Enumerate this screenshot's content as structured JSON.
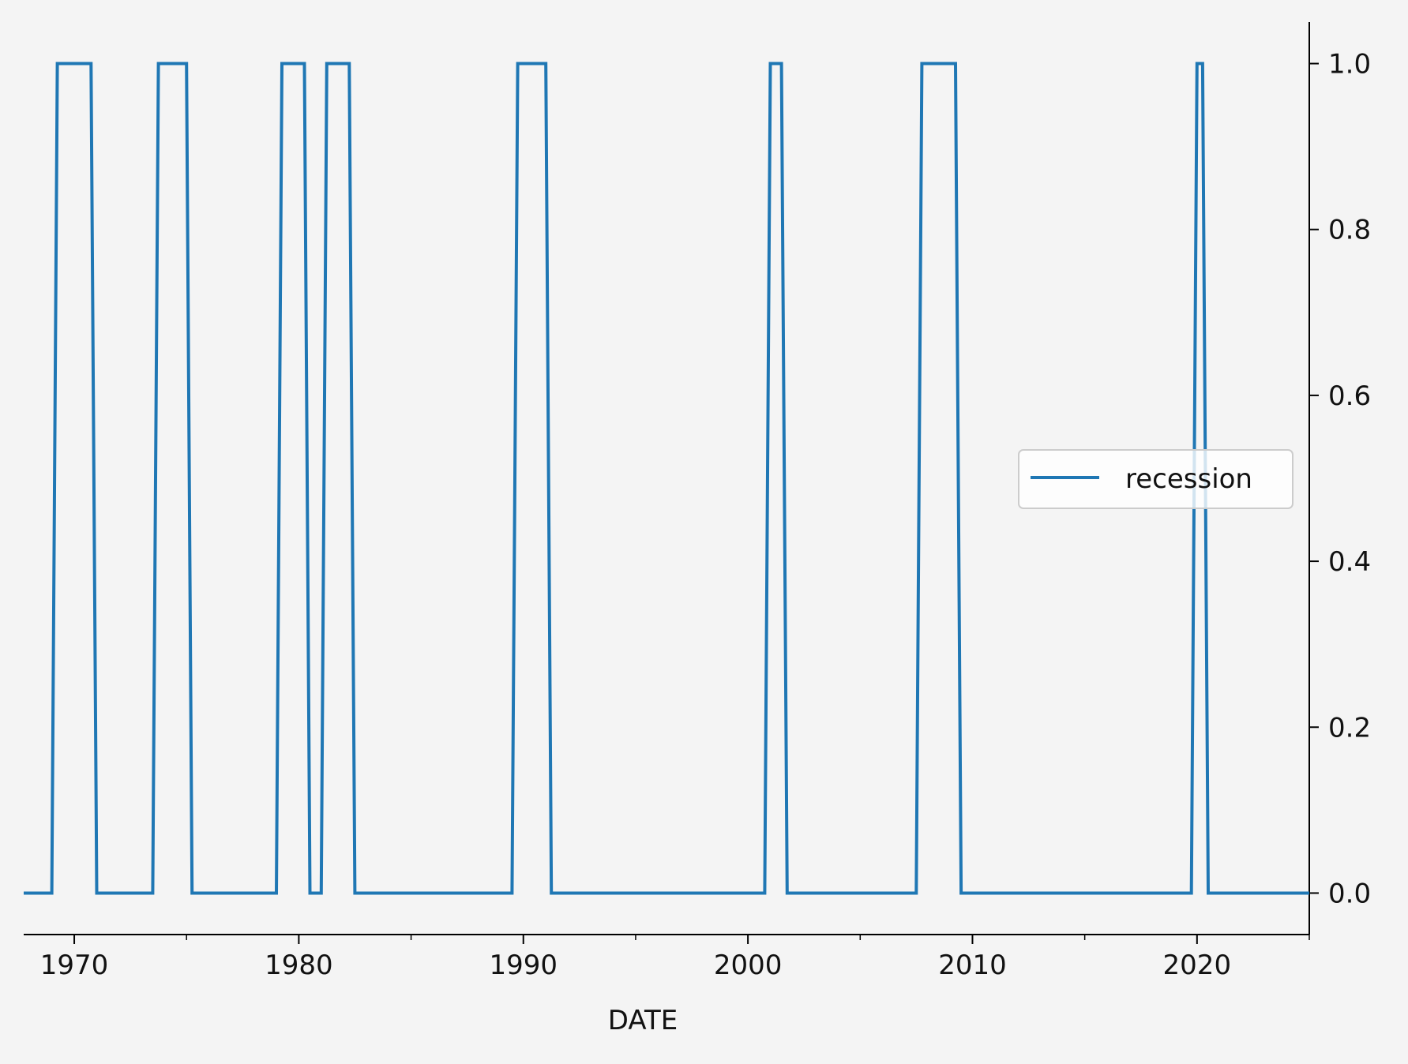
{
  "chart_data": {
    "type": "line",
    "title": "",
    "xlabel": "DATE",
    "ylabel": "",
    "x_ticks": [
      "1970",
      "1980",
      "1990",
      "2000",
      "2010",
      "2020"
    ],
    "y_ticks": [
      "0.0",
      "0.2",
      "0.4",
      "0.6",
      "0.8",
      "1.0"
    ],
    "xlim": [
      "1967-10-01",
      "2025-01-01"
    ],
    "ylim": [
      -0.05,
      1.05
    ],
    "y_axis_side": "right",
    "grid": false,
    "legend_position": "right",
    "series": [
      {
        "name": "recession",
        "color": "#1f77b4",
        "x": [
          "1967-10-01",
          "1969-01-01",
          "1969-04-01",
          "1970-10-01",
          "1971-01-01",
          "1973-07-01",
          "1973-10-01",
          "1975-01-01",
          "1975-04-01",
          "1979-01-01",
          "1979-04-01",
          "1980-04-01",
          "1980-07-01",
          "1981-01-01",
          "1981-04-01",
          "1982-04-01",
          "1982-07-01",
          "1989-07-01",
          "1989-10-01",
          "1991-01-01",
          "1991-04-01",
          "2000-10-01",
          "2001-01-01",
          "2001-07-01",
          "2001-10-01",
          "2007-07-01",
          "2007-10-01",
          "2009-04-01",
          "2009-07-01",
          "2019-10-01",
          "2020-01-01",
          "2020-04-01",
          "2020-07-01",
          "2025-01-01"
        ],
        "y": [
          0,
          0,
          1,
          1,
          0,
          0,
          1,
          1,
          0,
          0,
          1,
          1,
          0,
          0,
          1,
          1,
          0,
          0,
          1,
          1,
          0,
          0,
          1,
          1,
          0,
          0,
          1,
          1,
          0,
          0,
          1,
          1,
          0,
          0
        ]
      }
    ]
  }
}
